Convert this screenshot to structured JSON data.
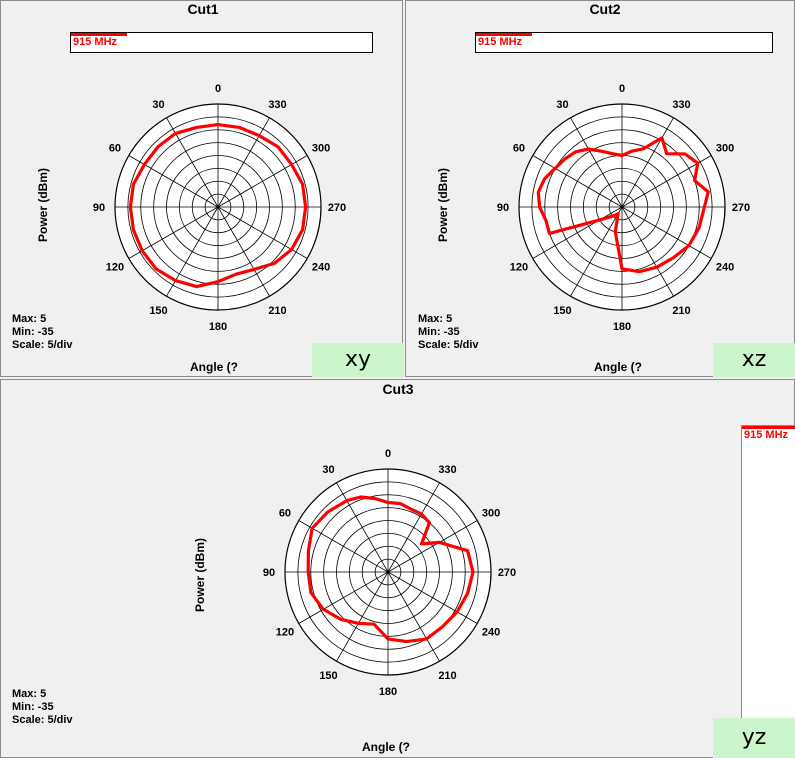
{
  "chart_data": [
    {
      "type": "polar",
      "title": "Cut1",
      "legend": [
        "915 MHz"
      ],
      "ylabel": "Power  (dBm)",
      "xlabel": "Angle  (?",
      "stats": {
        "max": "Max: 5",
        "min": "Min: -35",
        "scale": "Scale: 5/div"
      },
      "rmin": -35,
      "rmax": 5,
      "angle_ticks": [
        "0",
        "30",
        "60",
        "90",
        "120",
        "150",
        "180",
        "210",
        "240",
        "270",
        "300",
        "330"
      ],
      "tag": "xy",
      "series": [
        {
          "name": "915 MHz",
          "color": "#ff0000",
          "angles": [
            0,
            15,
            30,
            45,
            60,
            75,
            90,
            105,
            120,
            135,
            150,
            165,
            180,
            195,
            210,
            225,
            240,
            255,
            270,
            285,
            300,
            315,
            330,
            345
          ],
          "values": [
            -3,
            -3,
            -2,
            -2,
            -2,
            -1,
            -1,
            -1,
            -1,
            -1,
            -2,
            -3,
            -6,
            -8,
            -7,
            -4,
            -2,
            -1,
            -1,
            -1,
            -2,
            -2,
            -3,
            -3
          ]
        }
      ]
    },
    {
      "type": "polar",
      "title": "Cut2",
      "legend": [
        "915 MHz"
      ],
      "ylabel": "Power  (dBm)",
      "xlabel": "Angle  (?",
      "stats": {
        "max": "Max: 5",
        "min": "Min: -35",
        "scale": "Scale: 5/div"
      },
      "rmin": -35,
      "rmax": 5,
      "angle_ticks": [
        "0",
        "30",
        "60",
        "90",
        "120",
        "150",
        "180",
        "210",
        "240",
        "270",
        "300",
        "330"
      ],
      "tag": "xz",
      "series": [
        {
          "name": "915 MHz",
          "color": "#ff0000",
          "angles": [
            0,
            10,
            20,
            30,
            40,
            50,
            60,
            70,
            80,
            90,
            100,
            110,
            120,
            135,
            150,
            165,
            180,
            195,
            210,
            225,
            240,
            255,
            270,
            280,
            290,
            300,
            310,
            320,
            330,
            340,
            350
          ],
          "values": [
            -15,
            -14,
            -12,
            -9,
            -7,
            -6,
            -5,
            -3,
            -2,
            -3,
            -5,
            -5,
            -25,
            -30,
            -32,
            -25,
            -11,
            -9,
            -8,
            -7,
            -5,
            -4,
            -3,
            -1,
            -5,
            -1,
            -3,
            -8,
            -4,
            -11,
            -13
          ]
        }
      ]
    },
    {
      "type": "polar",
      "title": "Cut3",
      "legend": [
        "915 MHz"
      ],
      "ylabel": "Power  (dBm)",
      "xlabel": "Angle  (?",
      "stats": {
        "max": "Max: 5",
        "min": "Min: -35",
        "scale": "Scale: 5/div"
      },
      "rmin": -35,
      "rmax": 5,
      "angle_ticks": [
        "0",
        "30",
        "60",
        "90",
        "120",
        "150",
        "180",
        "210",
        "240",
        "270",
        "300",
        "330"
      ],
      "tag": "yz",
      "series": [
        {
          "name": "915 MHz",
          "color": "#ff0000",
          "angles": [
            0,
            10,
            20,
            30,
            45,
            60,
            75,
            90,
            105,
            120,
            135,
            150,
            165,
            180,
            195,
            210,
            225,
            240,
            255,
            270,
            285,
            300,
            310,
            320,
            330,
            340,
            350
          ],
          "values": [
            -8,
            -6,
            -4,
            -3,
            -2,
            -1,
            -3,
            -4,
            -4,
            -6,
            -9,
            -12,
            -14,
            -9,
            -7,
            -5,
            -5,
            -4,
            -3,
            -2,
            -3,
            -12,
            -18,
            -10,
            -9,
            -9,
            -8
          ]
        }
      ]
    }
  ]
}
